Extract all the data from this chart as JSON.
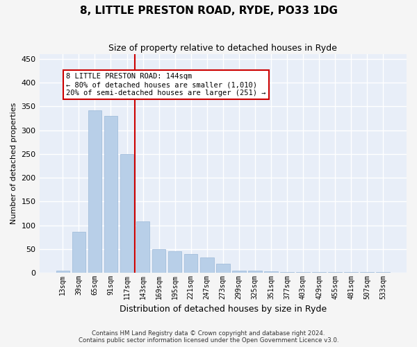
{
  "title1": "8, LITTLE PRESTON ROAD, RYDE, PO33 1DG",
  "title2": "Size of property relative to detached houses in Ryde",
  "xlabel": "Distribution of detached houses by size in Ryde",
  "ylabel": "Number of detached properties",
  "categories": [
    "13sqm",
    "39sqm",
    "65sqm",
    "91sqm",
    "117sqm",
    "143sqm",
    "169sqm",
    "195sqm",
    "221sqm",
    "247sqm",
    "273sqm",
    "299sqm",
    "325sqm",
    "351sqm",
    "377sqm",
    "403sqm",
    "429sqm",
    "455sqm",
    "481sqm",
    "507sqm",
    "533sqm"
  ],
  "values": [
    5,
    87,
    342,
    330,
    250,
    108,
    50,
    46,
    40,
    32,
    19,
    5,
    4,
    3,
    1,
    2,
    1,
    1,
    1,
    1,
    1
  ],
  "bar_color": "#b8cfe8",
  "bar_edge_color": "#9ab8d8",
  "background_color": "#e8eef8",
  "grid_color": "#ffffff",
  "vline_color": "#cc0000",
  "annotation_text": "8 LITTLE PRESTON ROAD: 144sqm\n← 80% of detached houses are smaller (1,010)\n20% of semi-detached houses are larger (251) →",
  "footnote": "Contains HM Land Registry data © Crown copyright and database right 2024.\nContains public sector information licensed under the Open Government Licence v3.0.",
  "ylim": [
    0,
    460
  ],
  "yticks": [
    0,
    50,
    100,
    150,
    200,
    250,
    300,
    350,
    400,
    450
  ],
  "fig_facecolor": "#f5f5f5",
  "title1_fontsize": 11,
  "title2_fontsize": 9,
  "ylabel_fontsize": 8,
  "xlabel_fontsize": 9,
  "tick_fontsize": 8,
  "xtick_fontsize": 7
}
